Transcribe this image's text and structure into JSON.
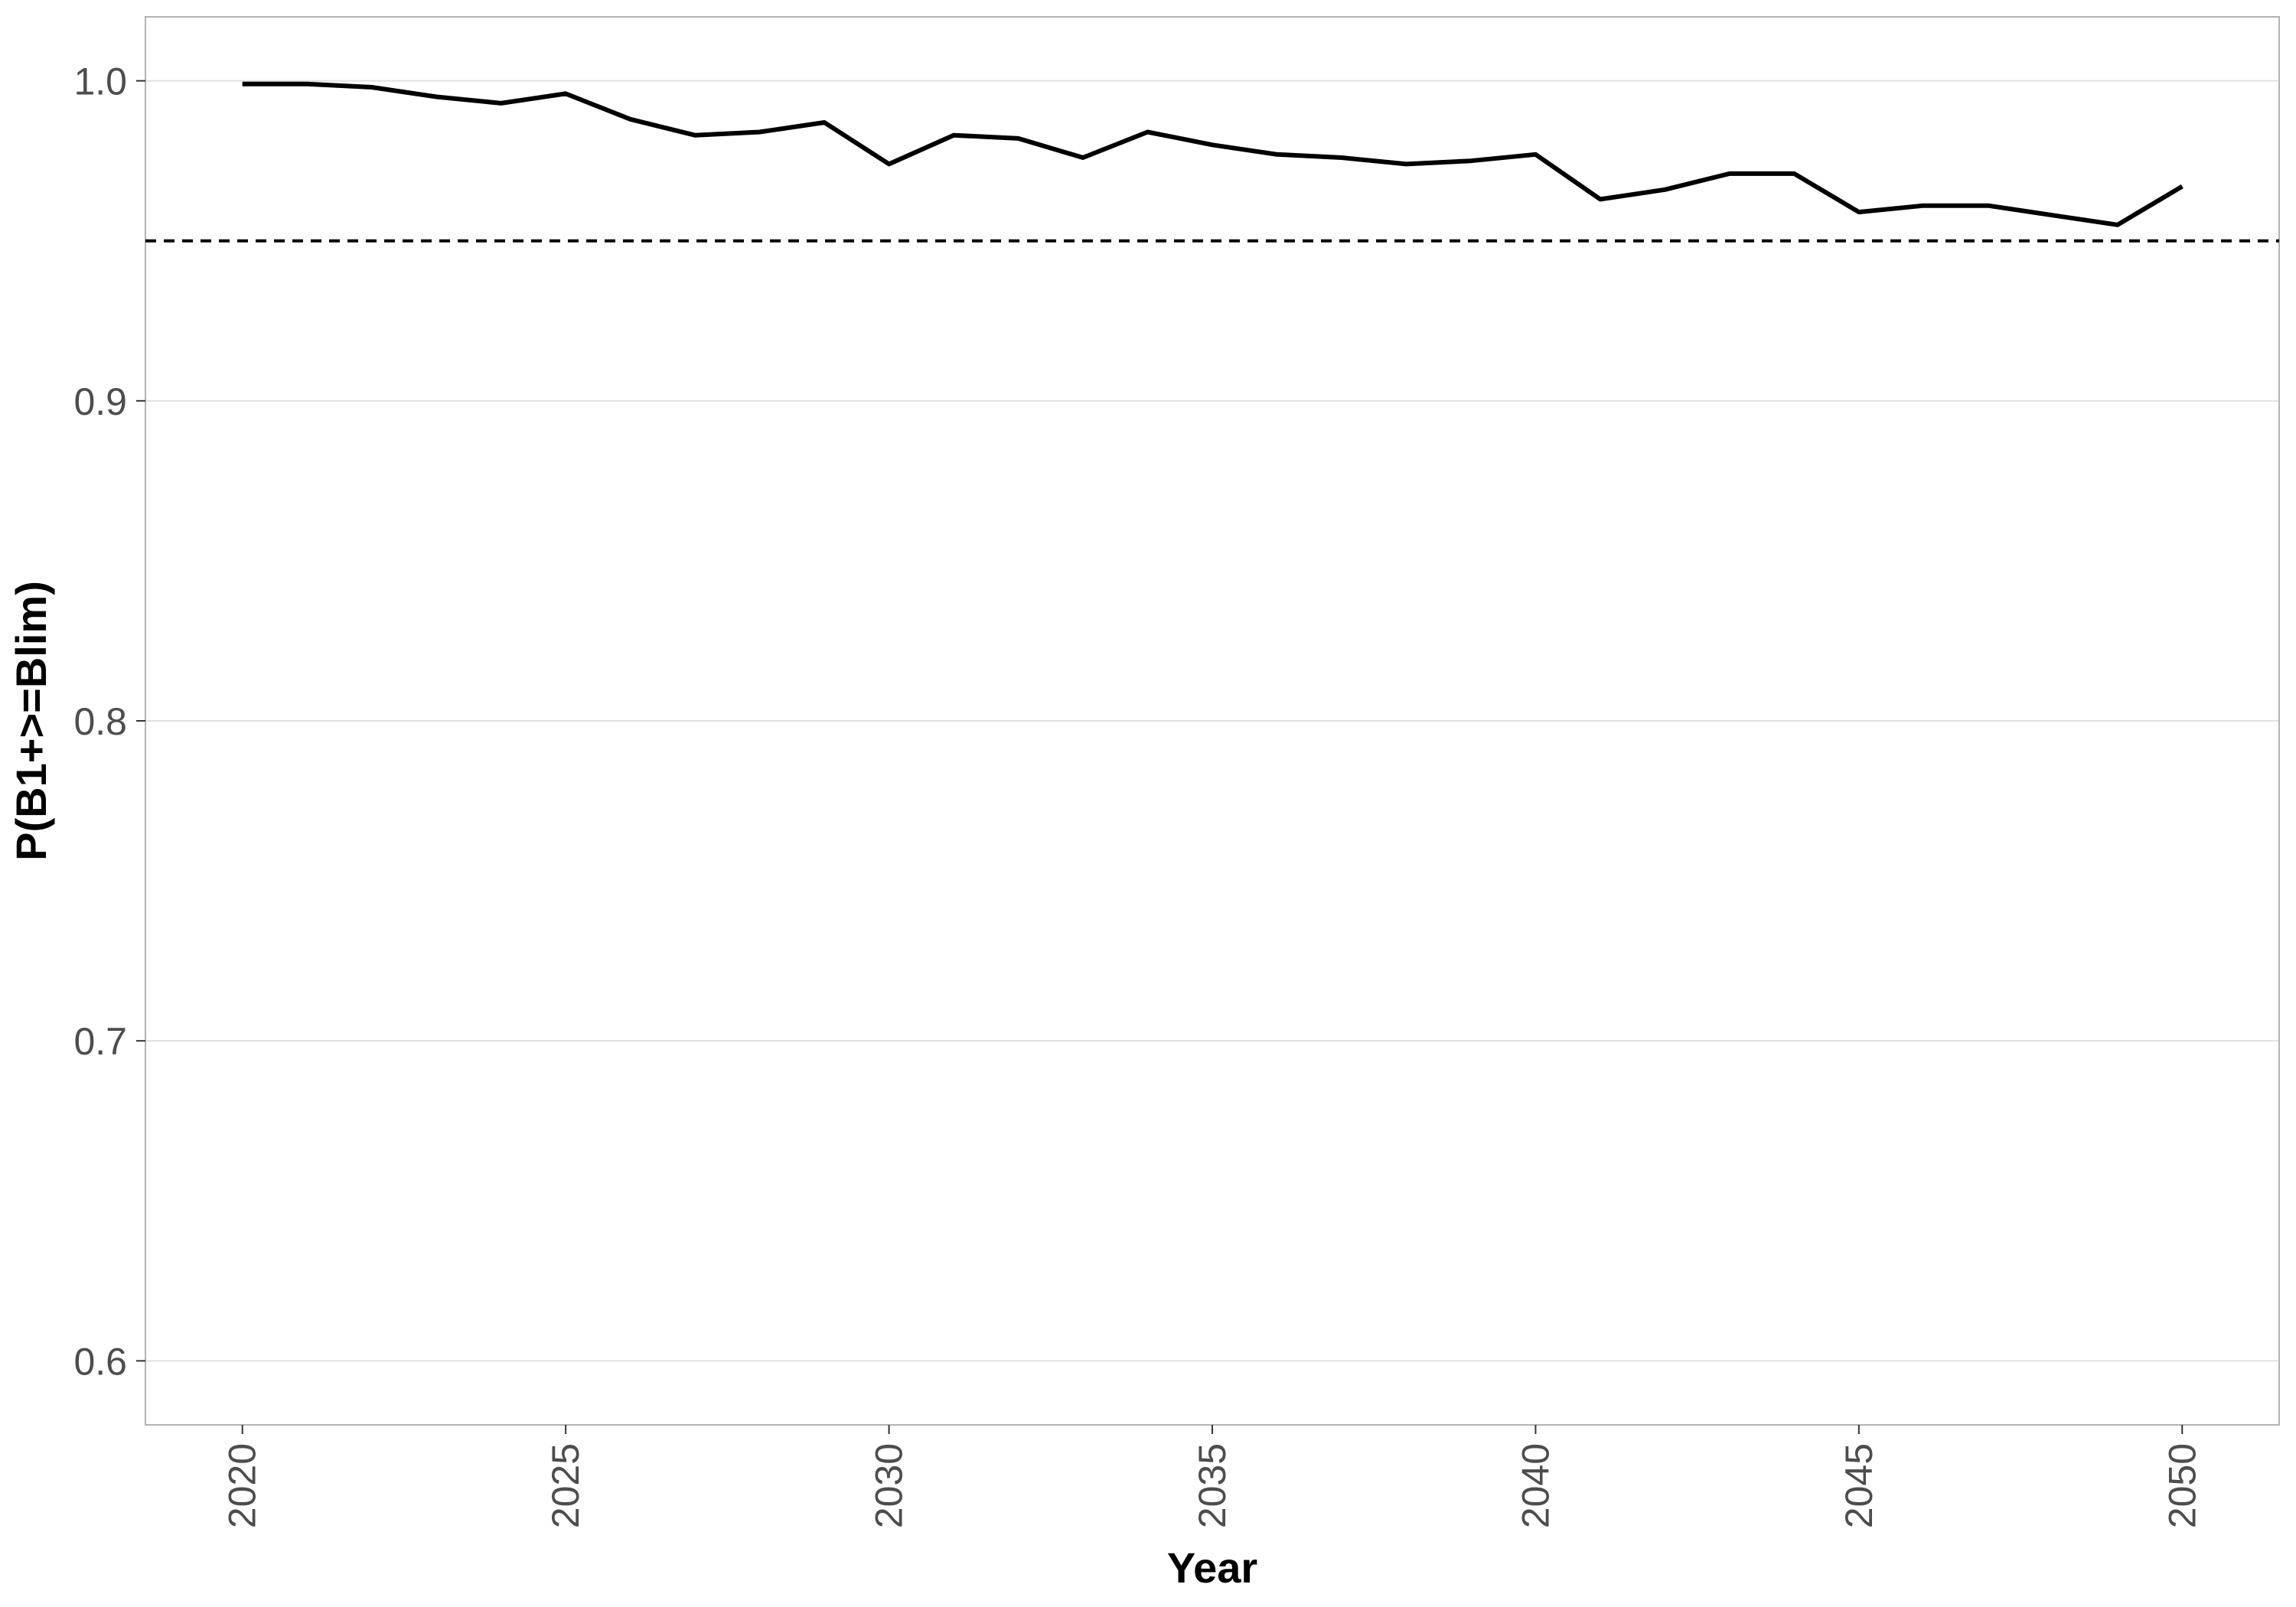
{
  "chart_data": {
    "type": "line",
    "title": "",
    "xlabel": "Year",
    "ylabel": "P(B1+>=Blim)",
    "xlim": [
      2018.5,
      2051.5
    ],
    "ylim": [
      0.58,
      1.02
    ],
    "x_ticks": [
      2020,
      2025,
      2030,
      2035,
      2040,
      2045,
      2050
    ],
    "x_tick_labels": [
      "2020",
      "2025",
      "2030",
      "2035",
      "2040",
      "2045",
      "2050"
    ],
    "y_ticks": [
      0.6,
      0.7,
      0.8,
      0.9,
      1.0
    ],
    "y_tick_labels": [
      "0.6",
      "0.7",
      "0.8",
      "0.9",
      "1.0"
    ],
    "grid": "horizontal",
    "reference_line": {
      "y": 0.95,
      "style": "dashed"
    },
    "series": [
      {
        "x": [
          2020,
          2021,
          2022,
          2023,
          2024,
          2025,
          2026,
          2027,
          2028,
          2029,
          2030,
          2031,
          2032,
          2033,
          2034,
          2035,
          2036,
          2037,
          2038,
          2039,
          2040,
          2041,
          2042,
          2043,
          2044,
          2045,
          2046,
          2047,
          2048,
          2049,
          2050
        ],
        "values": [
          0.999,
          0.999,
          0.998,
          0.995,
          0.993,
          0.996,
          0.988,
          0.983,
          0.984,
          0.987,
          0.974,
          0.983,
          0.982,
          0.976,
          0.984,
          0.98,
          0.977,
          0.976,
          0.974,
          0.975,
          0.977,
          0.963,
          0.966,
          0.971,
          0.971,
          0.959,
          0.961,
          0.961,
          0.958,
          0.955,
          0.967
        ]
      }
    ],
    "colors": {
      "line": "#000000",
      "grid": "#e0e0e0",
      "panel_border": "#b3b3b3",
      "tick_text": "#4d4d4d"
    }
  }
}
